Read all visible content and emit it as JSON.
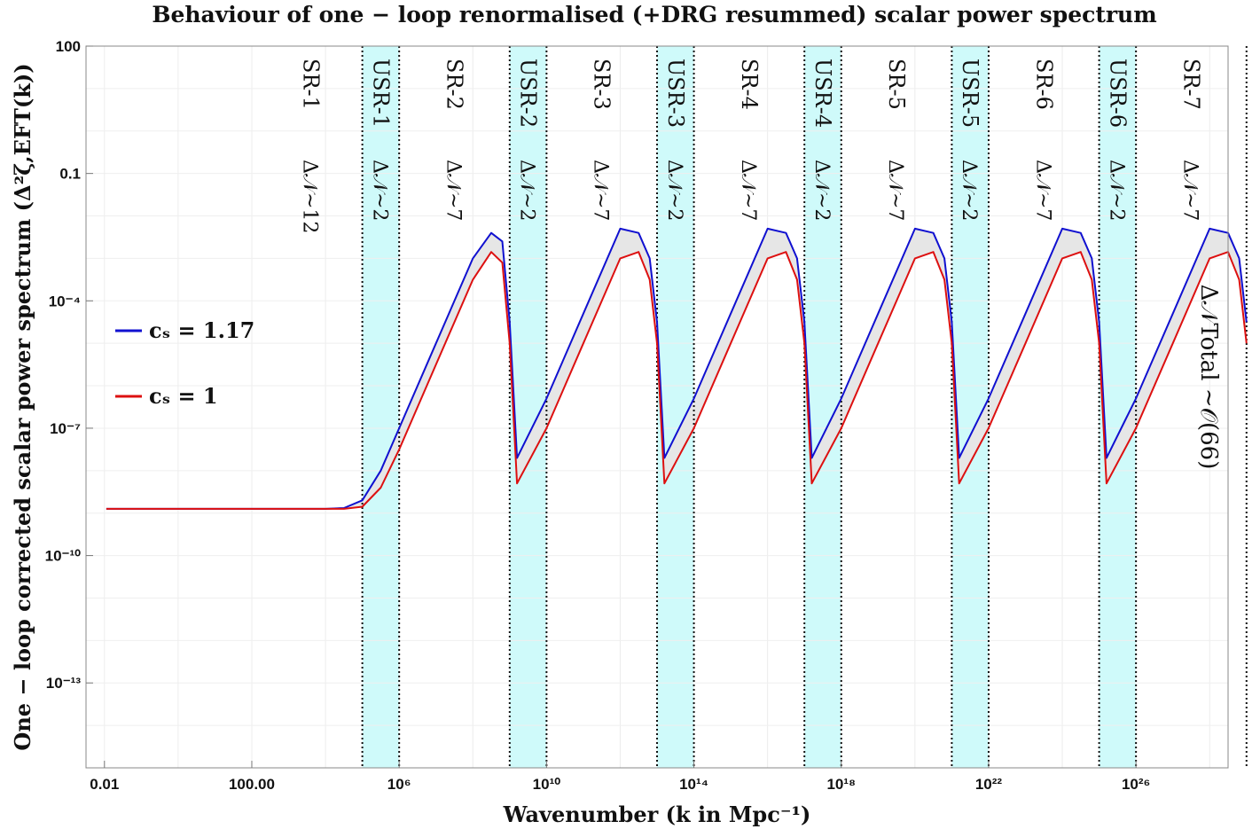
{
  "chart_data": {
    "type": "line",
    "title": "Behaviour of one − loop renormalised (+DRG resummed) scalar power spectrum",
    "xlabel": "Wavenumber (k in Mpc⁻¹)",
    "ylabel": "One − loop corrected scalar power spectrum (Δ²ζ,EFT(k))",
    "x_scale": "log",
    "y_scale": "log",
    "xlim": [
      0.00316,
      3.16e+28
    ],
    "ylim": [
      1e-15,
      100
    ],
    "x_tick_labels": [
      "0.01",
      "100.00",
      "10⁶",
      "10¹⁰",
      "10¹⁴",
      "10¹⁸",
      "10²²",
      "10²⁶"
    ],
    "x_tick_values": [
      0.01,
      100,
      1000000.0,
      10000000000.0,
      100000000000000.0,
      1e+18,
      1e+22,
      1e+26
    ],
    "y_tick_labels": [
      "10⁻¹³",
      "10⁻¹⁰",
      "10⁻⁷",
      "10⁻⁴",
      "0.1",
      "100"
    ],
    "y_tick_values": [
      1e-13,
      1e-10,
      1e-07,
      0.0001,
      0.1,
      100
    ],
    "grid": true,
    "legend_position": "left",
    "regions": [
      {
        "label": "SR-1",
        "efolds": "Δ𝒩~12",
        "kind": "SR"
      },
      {
        "label": "USR-1",
        "efolds": "Δ𝒩~2",
        "kind": "USR"
      },
      {
        "label": "SR-2",
        "efolds": "Δ𝒩~7",
        "kind": "SR"
      },
      {
        "label": "USR-2",
        "efolds": "Δ𝒩~2",
        "kind": "USR"
      },
      {
        "label": "SR-3",
        "efolds": "Δ𝒩~7",
        "kind": "SR"
      },
      {
        "label": "USR-3",
        "efolds": "Δ𝒩~2",
        "kind": "USR"
      },
      {
        "label": "SR-4",
        "efolds": "Δ𝒩~7",
        "kind": "SR"
      },
      {
        "label": "USR-4",
        "efolds": "Δ𝒩~2",
        "kind": "USR"
      },
      {
        "label": "SR-5",
        "efolds": "Δ𝒩~7",
        "kind": "SR"
      },
      {
        "label": "USR-5",
        "efolds": "Δ𝒩~2",
        "kind": "USR"
      },
      {
        "label": "SR-6",
        "efolds": "Δ𝒩~7",
        "kind": "SR"
      },
      {
        "label": "USR-6",
        "efolds": "Δ𝒩~2",
        "kind": "USR"
      },
      {
        "label": "SR-7",
        "efolds": "Δ𝒩~7",
        "kind": "SR"
      }
    ],
    "region_boundaries_log10k": [
      5.0,
      6.0,
      9.0,
      10.0,
      13.0,
      14.0,
      17.0,
      18.0,
      21.0,
      22.0,
      25.0,
      26.0,
      29.0
    ],
    "total_annotation": "Δ𝒩Total ∼𝒪(66)",
    "series": [
      {
        "name": "cₛ = 1.17",
        "color": "#1010d0",
        "log10k": [
          -1.95,
          0,
          2,
          4,
          4.5,
          5,
          5.5,
          6,
          7,
          8,
          8.5,
          8.8,
          9,
          9.2,
          10,
          11,
          12,
          12.5,
          12.8,
          13,
          13.2,
          14,
          15,
          16,
          16.5,
          16.8,
          17,
          17.2,
          18,
          19,
          20,
          20.5,
          20.8,
          21,
          21.2,
          22,
          23,
          24,
          24.5,
          24.8,
          25,
          25.2,
          26,
          27,
          28,
          28.5,
          28.8,
          29.0
        ],
        "log10P": [
          -8.9,
          -8.9,
          -8.9,
          -8.9,
          -8.88,
          -8.7,
          -8.0,
          -7.0,
          -5.0,
          -3.0,
          -2.4,
          -2.6,
          -4.5,
          -7.7,
          -6.3,
          -4.3,
          -2.3,
          -2.4,
          -3.0,
          -4.5,
          -7.7,
          -6.3,
          -4.3,
          -2.3,
          -2.4,
          -3.0,
          -4.5,
          -7.7,
          -6.3,
          -4.3,
          -2.3,
          -2.4,
          -3.0,
          -4.5,
          -7.7,
          -6.3,
          -4.3,
          -2.3,
          -2.4,
          -3.0,
          -4.5,
          -7.7,
          -6.3,
          -4.3,
          -2.3,
          -2.4,
          -3.0,
          -4.5
        ]
      },
      {
        "name": "cₛ = 1",
        "color": "#dd1010",
        "log10k": [
          -1.95,
          0,
          2,
          4,
          4.5,
          5,
          5.5,
          6,
          7,
          8,
          8.5,
          8.8,
          9,
          9.2,
          10,
          11,
          12,
          12.5,
          12.8,
          13,
          13.2,
          14,
          15,
          16,
          16.5,
          16.8,
          17,
          17.2,
          18,
          19,
          20,
          20.5,
          20.8,
          21,
          21.2,
          22,
          23,
          24,
          24.5,
          24.8,
          25,
          25.2,
          26,
          27,
          28,
          28.5,
          28.8,
          29.0
        ],
        "log10P": [
          -8.9,
          -8.9,
          -8.9,
          -8.9,
          -8.9,
          -8.85,
          -8.4,
          -7.5,
          -5.5,
          -3.5,
          -2.85,
          -3.1,
          -5.0,
          -8.3,
          -7.0,
          -5.0,
          -3.0,
          -2.85,
          -3.5,
          -5.0,
          -8.3,
          -7.0,
          -5.0,
          -3.0,
          -2.85,
          -3.5,
          -5.0,
          -8.3,
          -7.0,
          -5.0,
          -3.0,
          -2.85,
          -3.5,
          -5.0,
          -8.3,
          -7.0,
          -5.0,
          -3.0,
          -2.85,
          -3.5,
          -5.0,
          -8.3,
          -7.0,
          -5.0,
          -3.0,
          -2.85,
          -3.5,
          -5.0
        ]
      }
    ],
    "band_fill": "#e6e6e6",
    "usr_fill": "#cffafa"
  }
}
